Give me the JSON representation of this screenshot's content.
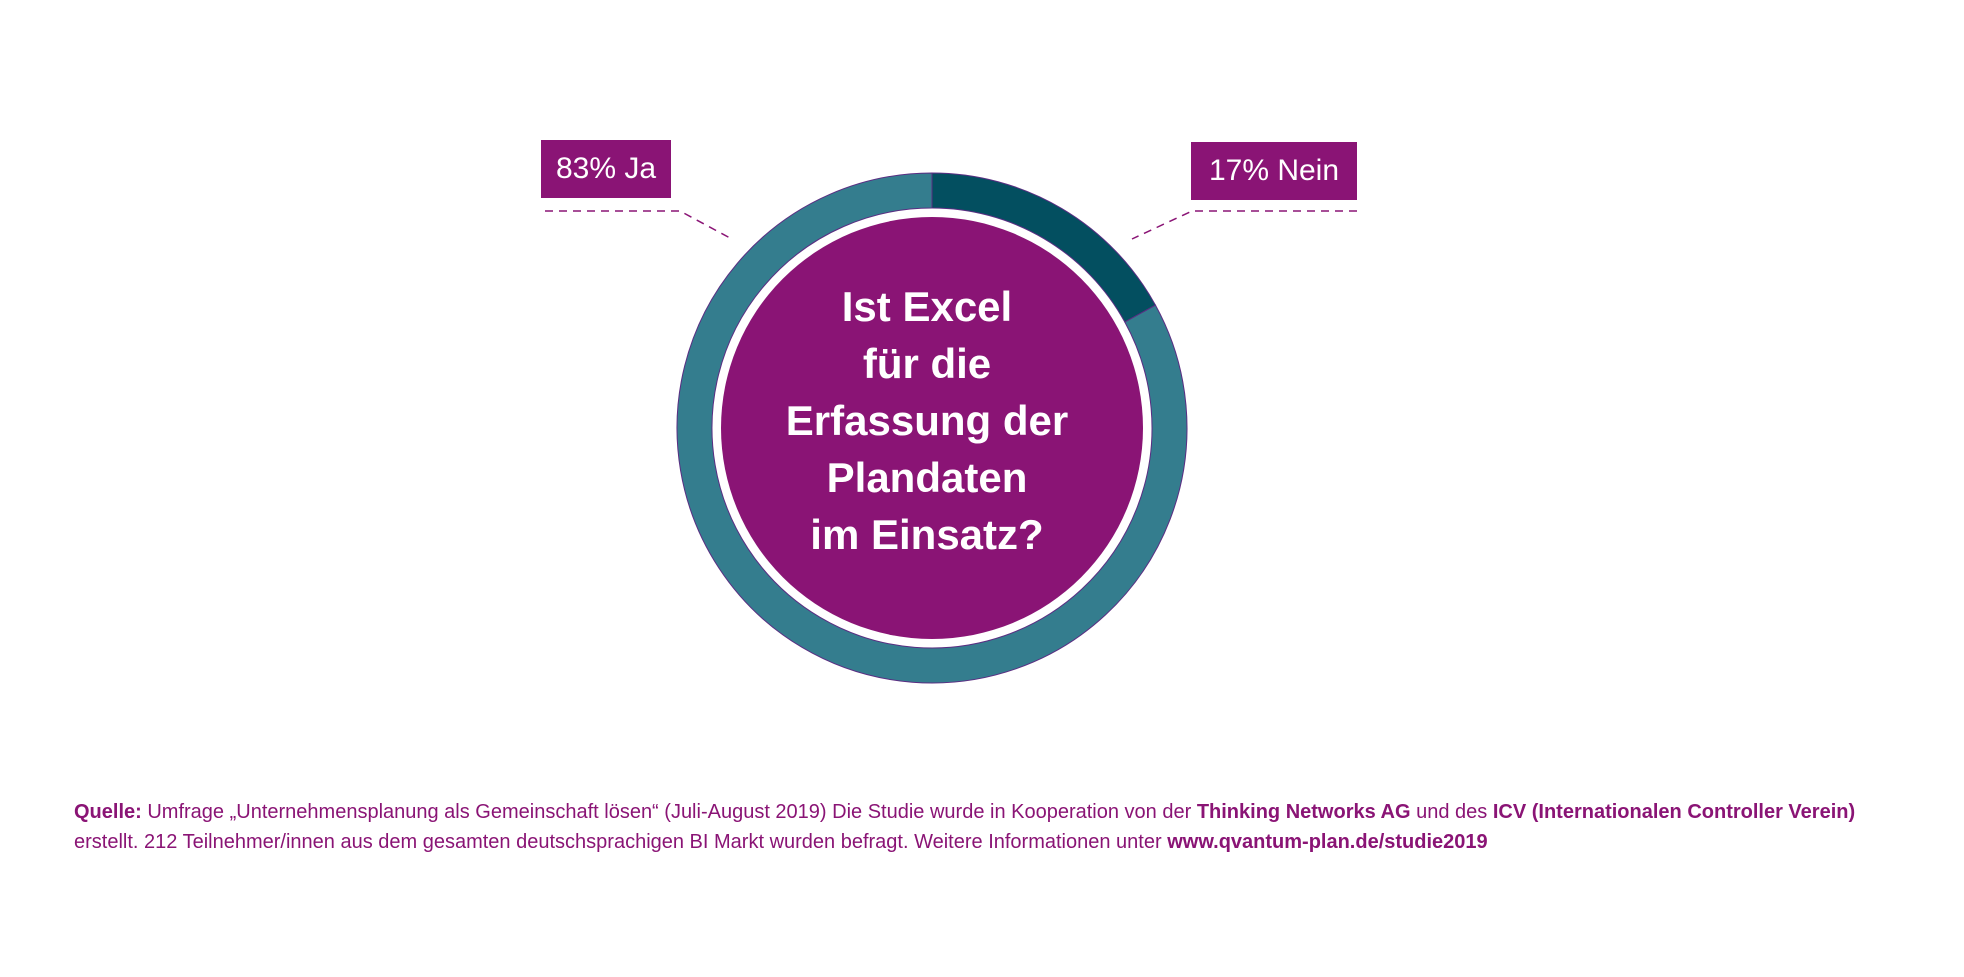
{
  "chart_data": {
    "type": "pie",
    "title": "Ist Excel für die Erfassung der Plandaten im Einsatz?",
    "slices": [
      {
        "label": "Ja",
        "value": 83,
        "display": "83% Ja",
        "color": "#347d8e"
      },
      {
        "label": "Nein",
        "value": 17,
        "display": "17% Nein",
        "color": "#034f60"
      }
    ],
    "center_color": "#8a1475"
  },
  "center_lines": [
    "Ist Excel",
    "für die",
    "Erfassung der",
    "Plandaten",
    "im Einsatz?"
  ],
  "source": {
    "line1": {
      "prefix": "Quelle:",
      "text1": " Umfrage „Unternehmensplanung als Gemeinschaft lösen“ (Juli-August 2019)  Die Studie wurde in Kooperation von der ",
      "bold1": "Thinking Networks AG",
      "text2": " und des ",
      "bold2": "ICV",
      "text3": "  ",
      "bold3": "(Internationalen Controller Verein)"
    },
    "line2": {
      "text": "erstellt. 212 Teilnehmer/innen aus dem gesamten deutschsprachigen BI Markt wurden befragt. Weitere Informationen unter ",
      "link": "www.qvantum-plan.de/studie2019"
    }
  },
  "colors": {
    "accent": "#8a1475",
    "ring_ja": "#347d8e",
    "ring_nein": "#034f60"
  }
}
